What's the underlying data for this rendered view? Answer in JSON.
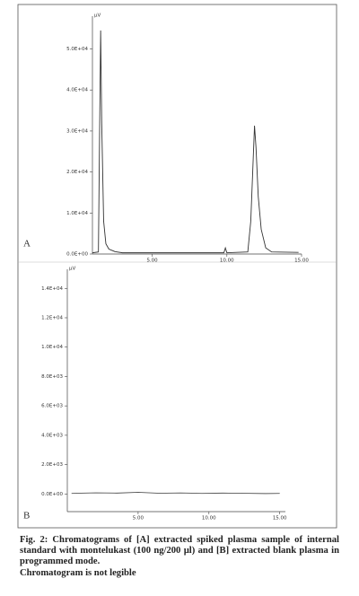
{
  "chart_data": [
    {
      "type": "line",
      "panel_label": "A",
      "y_unit": "µV",
      "color": "#333333",
      "x": [
        1.0,
        1.4,
        1.48,
        1.55,
        1.62,
        1.75,
        1.9,
        2.1,
        2.5,
        3.0,
        9.8,
        9.9,
        10.0,
        11.4,
        11.6,
        11.75,
        11.85,
        11.95,
        12.1,
        12.3,
        12.6,
        13.0,
        14.8
      ],
      "values": [
        300,
        500,
        30000,
        54500,
        32000,
        8000,
        2500,
        1200,
        600,
        300,
        300,
        1500,
        300,
        500,
        8000,
        22000,
        31300,
        26000,
        14000,
        6000,
        1500,
        500,
        400
      ],
      "xlim": [
        1,
        15
      ],
      "ylim": [
        0,
        58000
      ],
      "xticks": [
        {
          "value": 5,
          "label": "5.00"
        },
        {
          "value": 10,
          "label": "10.00"
        },
        {
          "value": 15,
          "label": "15.00"
        }
      ],
      "yticks": [
        {
          "value": 0,
          "label": "0.0E+00"
        },
        {
          "value": 10000,
          "label": "1.0E+04"
        },
        {
          "value": 20000,
          "label": "2.0E+04"
        },
        {
          "value": 30000,
          "label": "3.0E+04"
        },
        {
          "value": 40000,
          "label": "4.0E+04"
        },
        {
          "value": 50000,
          "label": "5.0E+04"
        }
      ]
    },
    {
      "type": "line",
      "panel_label": "B",
      "y_unit": "µV",
      "color": "#555555",
      "x": [
        0.3,
        2.0,
        3.5,
        5.0,
        6.5,
        8.0,
        9.5,
        11.0,
        12.5,
        14.0,
        15.0
      ],
      "values": [
        40,
        80,
        60,
        120,
        50,
        70,
        40,
        60,
        50,
        30,
        40
      ],
      "xlim": [
        0,
        15.4
      ],
      "ylim": [
        -1200,
        15300
      ],
      "xticks": [
        {
          "value": 5,
          "label": "5.00"
        },
        {
          "value": 10,
          "label": "10.00"
        },
        {
          "value": 15,
          "label": "15.00"
        }
      ],
      "yticks": [
        {
          "value": 0,
          "label": "0.0E+00"
        },
        {
          "value": 2000,
          "label": "2.0E+03"
        },
        {
          "value": 4000,
          "label": "4.0E+03"
        },
        {
          "value": 6000,
          "label": "6.0E+03"
        },
        {
          "value": 8000,
          "label": "8.0E+03"
        },
        {
          "value": 10000,
          "label": "1.0E+04"
        },
        {
          "value": 12000,
          "label": "1.2E+04"
        },
        {
          "value": 14000,
          "label": "1.4E+04"
        }
      ]
    }
  ],
  "caption": "Fig. 2: Chromatograms of [A] extracted spiked plasma sample of internal standard with montelukast (100 ng/200 µl) and [B] extracted blank plasma in programmed mode.",
  "note": "Chromatogram is not legible"
}
